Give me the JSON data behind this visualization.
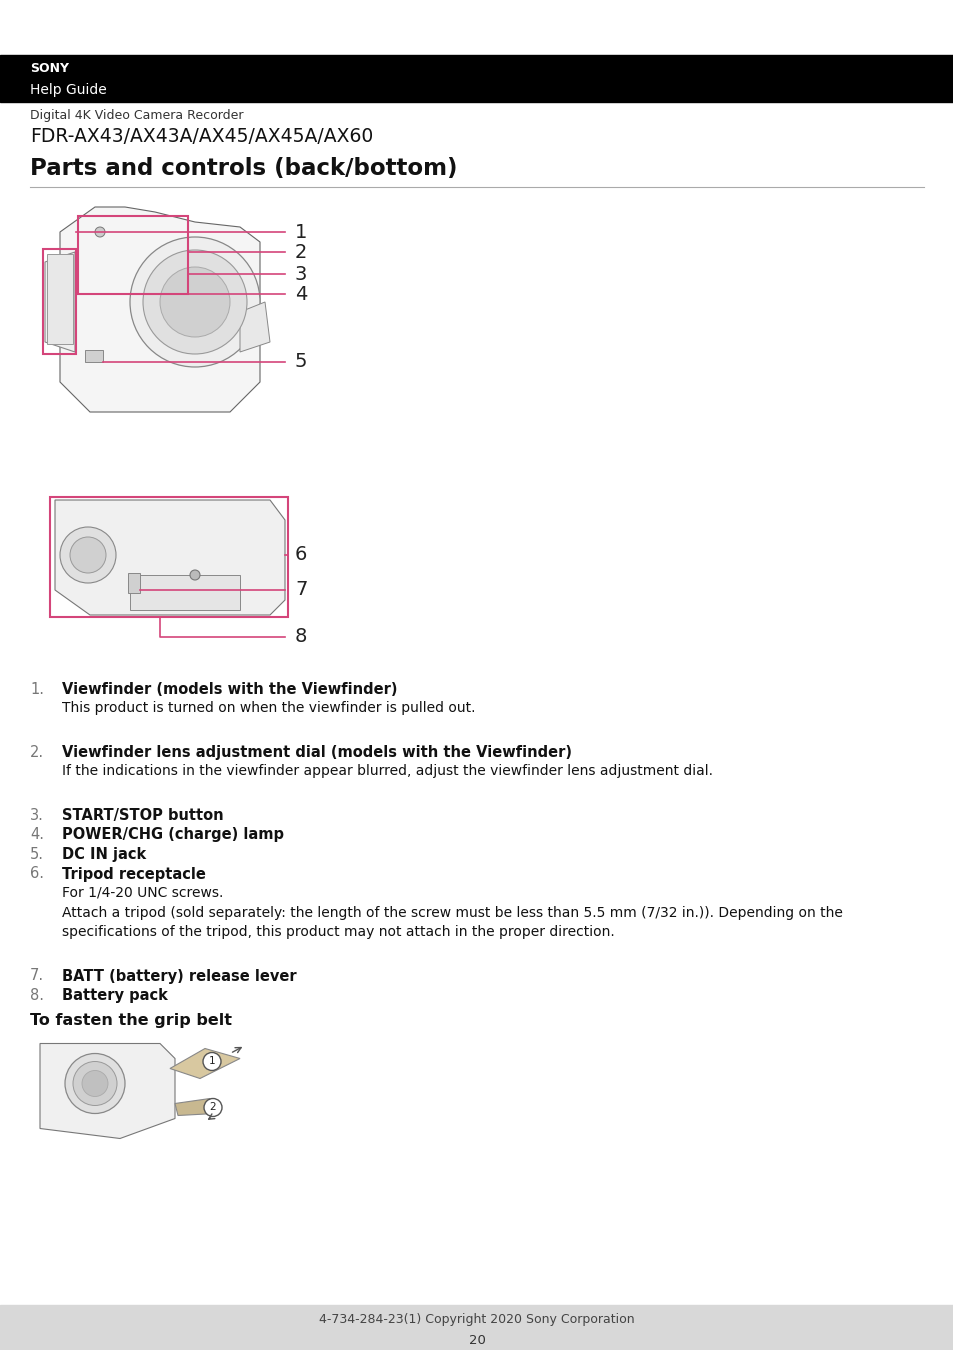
{
  "page_bg": "#ffffff",
  "header_bg": "#000000",
  "header_sony_text": "SONY",
  "header_guide_text": "Help Guide",
  "subtitle_small": "Digital 4K Video Camera Recorder",
  "subtitle_large": "FDR-AX43/AX43A/AX45/AX45A/AX60",
  "page_title": "Parts and controls (back/bottom)",
  "footer_text": "4-734-284-23(1) Copyright 2020 Sony Corporation",
  "page_number": "20",
  "items": [
    {
      "num": "1.",
      "bold": "Viewfinder (models with the Viewfinder)",
      "desc": "This product is turned on when the viewfinder is pulled out.",
      "extra_gap": true
    },
    {
      "num": "2.",
      "bold": "Viewfinder lens adjustment dial (models with the Viewfinder)",
      "desc": "If the indications in the viewfinder appear blurred, adjust the viewfinder lens adjustment dial.",
      "extra_gap": true
    },
    {
      "num": "3.",
      "bold": "START/STOP button",
      "desc": "",
      "extra_gap": false
    },
    {
      "num": "4.",
      "bold": "POWER/CHG (charge) lamp",
      "desc": "",
      "extra_gap": false
    },
    {
      "num": "5.",
      "bold": "DC IN jack",
      "desc": "",
      "extra_gap": false
    },
    {
      "num": "6.",
      "bold": "Tripod receptacle",
      "desc": "For 1/4-20 UNC screws.\nAttach a tripod (sold separately: the length of the screw must be less than 5.5 mm (7/32 in.)). Depending on the\nspecifications of the tripod, this product may not attach in the proper direction.",
      "extra_gap": true
    },
    {
      "num": "7.",
      "bold": "BATT (battery) release lever",
      "desc": "",
      "extra_gap": false
    },
    {
      "num": "8.",
      "bold": "Battery pack",
      "desc": "",
      "extra_gap": false
    }
  ],
  "grip_belt_title": "To fasten the grip belt",
  "pink_color": "#d4457a",
  "footer_bg": "#d8d8d8"
}
